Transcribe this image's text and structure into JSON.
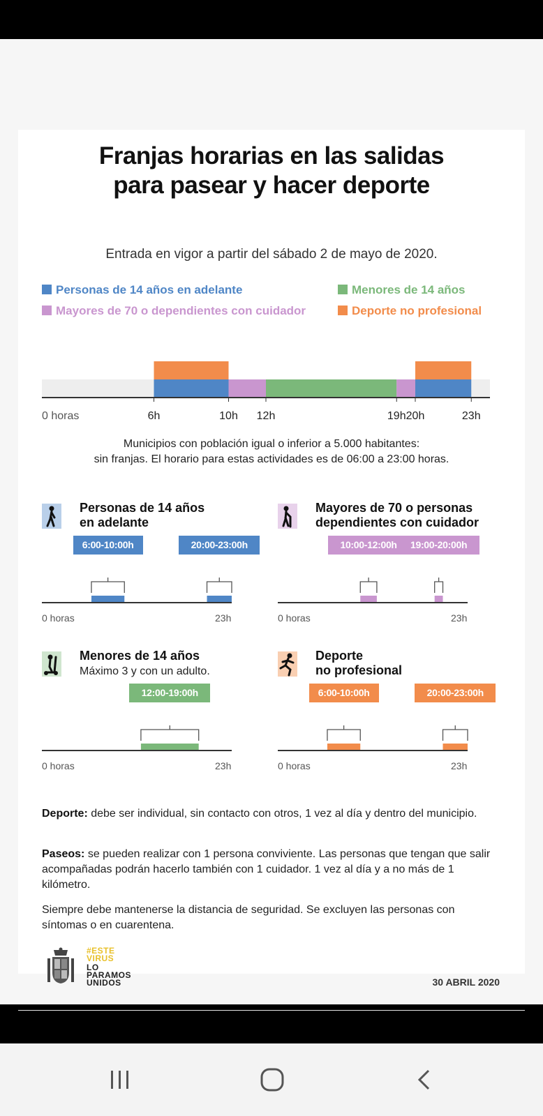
{
  "title_line1": "Franjas horarias en las salidas",
  "title_line2": "para pasear y hacer deporte",
  "subtitle": "Entrada en vigor a partir del sábado 2 de mayo de 2020.",
  "legend": [
    {
      "label": "Personas de 14 años en adelante",
      "color": "#4f86c6"
    },
    {
      "label": "Menores de 14 años",
      "color": "#7bb87a"
    },
    {
      "label": "Mayores de 70 o dependientes con cuidador",
      "color": "#c996cf"
    },
    {
      "label": "Deporte no profesional",
      "color": "#f28c4b"
    }
  ],
  "chart_data": {
    "type": "timeline",
    "x_range": [
      0,
      24
    ],
    "axis_start_label": "0 horas",
    "ticks": [
      {
        "h": 6,
        "label": "6h"
      },
      {
        "h": 10,
        "label": "10h"
      },
      {
        "h": 12,
        "label": "12h"
      },
      {
        "h": 19,
        "label": "19h"
      },
      {
        "h": 20,
        "label": "20h"
      },
      {
        "h": 23,
        "label": "23h"
      }
    ],
    "bars": [
      {
        "group": "Personas de 14 años en adelante",
        "start": 6,
        "end": 10,
        "row": 0
      },
      {
        "group": "Deporte no profesional",
        "start": 6,
        "end": 10,
        "row": 1
      },
      {
        "group": "Mayores de 70 o dependientes con cuidador",
        "start": 10,
        "end": 12,
        "row": 0
      },
      {
        "group": "Menores de 14 años",
        "start": 12,
        "end": 19,
        "row": 0
      },
      {
        "group": "Mayores de 70 o dependientes con cuidador",
        "start": 19,
        "end": 20,
        "row": 0
      },
      {
        "group": "Personas de 14 años en adelante",
        "start": 20,
        "end": 23,
        "row": 0
      },
      {
        "group": "Deporte no profesional",
        "start": 20,
        "end": 23,
        "row": 1
      }
    ]
  },
  "note_line1": "Municipios con población igual o inferior a 5.000 habitantes:",
  "note_line2": "sin franjas. El horario para estas actividades es de 06:00 a 23:00 horas.",
  "panels": [
    {
      "title1": "Personas de 14 años",
      "title2": "en adelante",
      "sub": "",
      "icon": "walking-person-icon",
      "color": "#4f86c6",
      "icon_bg": "#b9cfe9",
      "slots": [
        {
          "label": "6:00-10:00h",
          "start": 6,
          "end": 10
        },
        {
          "label": "20:00-23:00h",
          "start": 20,
          "end": 23
        }
      ],
      "start_label": "0 horas",
      "end_label": "23h"
    },
    {
      "title1": "Mayores de 70 o personas",
      "title2": "dependientes con cuidador",
      "sub": "",
      "icon": "elderly-person-cane-icon",
      "color": "#c996cf",
      "icon_bg": "#e8d2eb",
      "slots": [
        {
          "label": "10:00-12:00h",
          "start": 10,
          "end": 12
        },
        {
          "label": "19:00-20:00h",
          "start": 19,
          "end": 20
        }
      ],
      "start_label": "0 horas",
      "end_label": "23h"
    },
    {
      "title1": "Menores de 14 años",
      "title2": "",
      "sub": "Máximo 3 y con un adulto.",
      "icon": "child-scooter-icon",
      "color": "#7bb87a",
      "icon_bg": "#cfe5ce",
      "slots": [
        {
          "label": "12:00-19:00h",
          "start": 12,
          "end": 19
        }
      ],
      "start_label": "0 horas",
      "end_label": "23h"
    },
    {
      "title1": "Deporte",
      "title2": "no profesional",
      "sub": "",
      "icon": "running-person-icon",
      "color": "#f28c4b",
      "icon_bg": "#f9cfb2",
      "slots": [
        {
          "label": "6:00-10:00h",
          "start": 6,
          "end": 10
        },
        {
          "label": "20:00-23:00h",
          "start": 20,
          "end": 23
        }
      ],
      "start_label": "0 horas",
      "end_label": "23h"
    }
  ],
  "rules": [
    {
      "bold": "Deporte:",
      "text": " debe ser individual, sin contacto con otros, 1 vez al día y dentro del municipio."
    },
    {
      "bold": "Paseos:",
      "text": " se pueden realizar con 1 persona conviviente. Las personas que tengan que salir acompañadas podrán hacerlo también con 1 cuidador. 1 vez al día y a no más de 1 kilómetro."
    },
    {
      "bold": "",
      "text": "Siempre debe mantenerse la distancia de seguridad. Se excluyen las personas con síntomas o en cuarentena."
    }
  ],
  "slogan": [
    "#ESTE",
    "VIRUS",
    "LO",
    "PARAMOS",
    "UNIDOS"
  ],
  "date": "30 ABRIL 2020",
  "nav_icons": [
    "recent-apps-icon",
    "home-icon",
    "back-icon"
  ]
}
